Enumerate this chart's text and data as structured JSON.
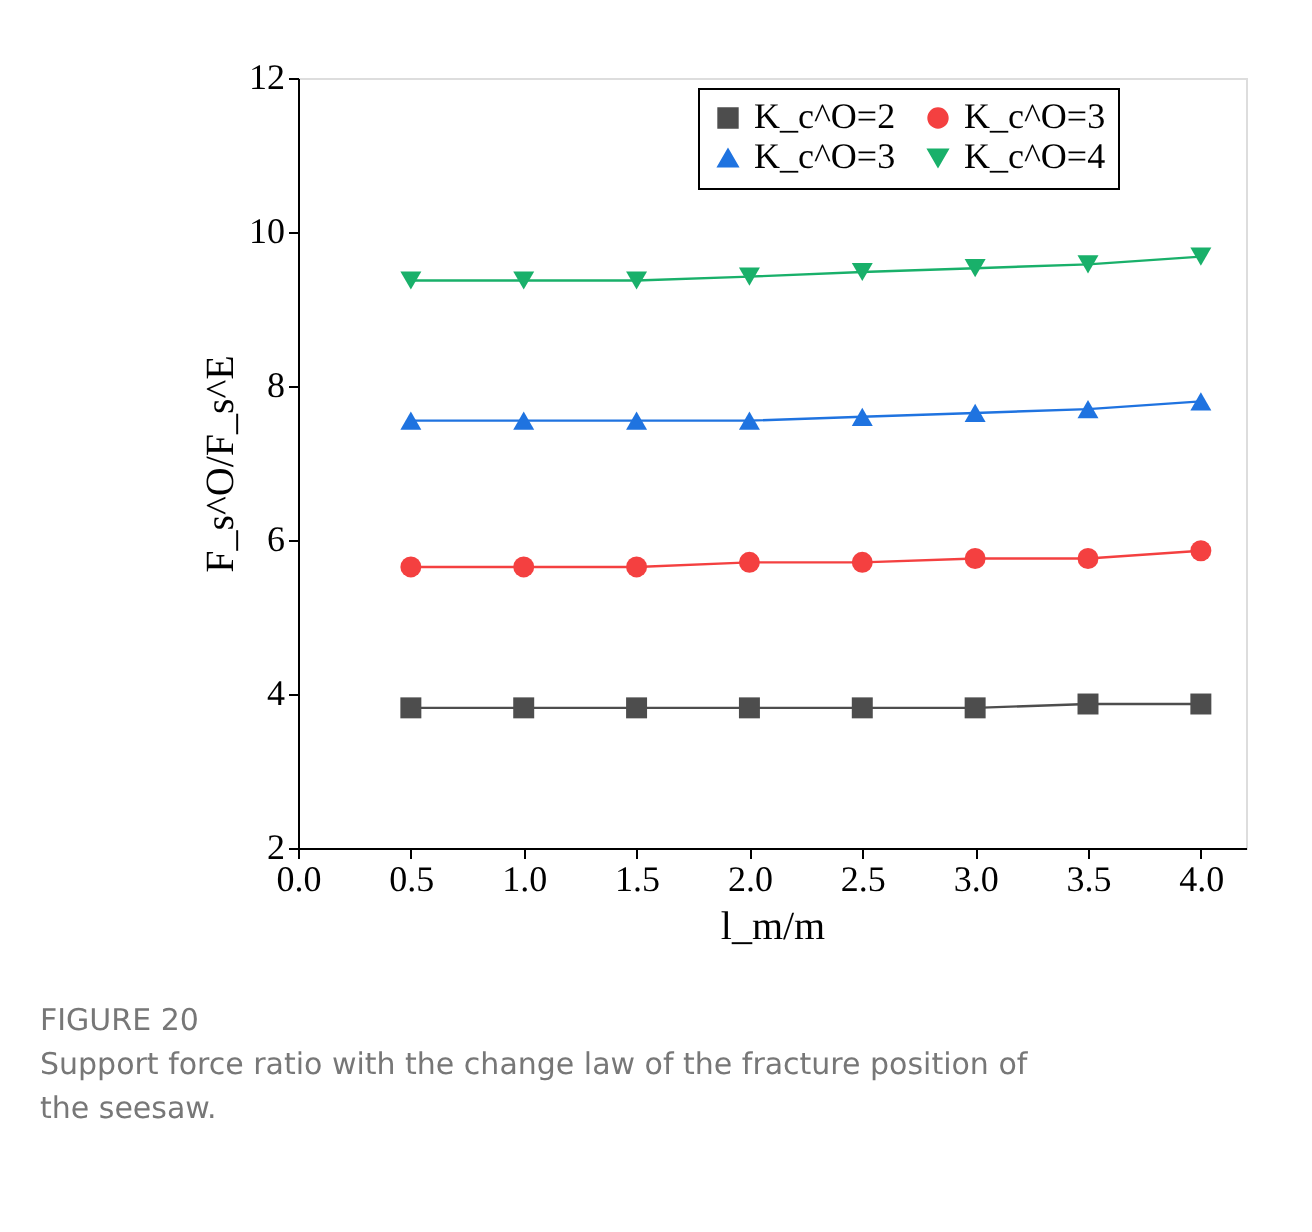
{
  "chart_data": {
    "type": "line",
    "xlabel": "l_m/m",
    "ylabel": "F_s^O/F_s^E",
    "x": [
      0.5,
      1.0,
      1.5,
      2.0,
      2.5,
      3.0,
      3.5,
      4.0
    ],
    "series": [
      {
        "name": "K_c^O=2",
        "color": "#4d4d4d",
        "marker": "square",
        "values": [
          3.82,
          3.82,
          3.82,
          3.82,
          3.82,
          3.82,
          3.87,
          3.87
        ]
      },
      {
        "name": "K_c^O=3",
        "color": "#f44040",
        "marker": "circle",
        "values": [
          5.65,
          5.65,
          5.65,
          5.71,
          5.71,
          5.76,
          5.76,
          5.86
        ]
      },
      {
        "name": "K_c^O=3",
        "color": "#1f73e0",
        "marker": "triangle",
        "values": [
          7.55,
          7.55,
          7.55,
          7.55,
          7.6,
          7.65,
          7.7,
          7.8
        ]
      },
      {
        "name": "K_c^O=4",
        "color": "#19b06a",
        "marker": "triangle-down",
        "values": [
          9.37,
          9.37,
          9.37,
          9.42,
          9.48,
          9.53,
          9.58,
          9.68
        ]
      }
    ],
    "xlim": [
      0,
      4.2
    ],
    "xticks": [
      {
        "value": 0,
        "label": "0.0"
      },
      0.5,
      {
        "value": 1,
        "label": "1.0"
      },
      1.5,
      {
        "value": 2,
        "label": "2.0"
      },
      2.5,
      {
        "value": 3,
        "label": "3.0"
      },
      3.5,
      {
        "value": 4,
        "label": "4.0"
      }
    ],
    "ylim": [
      2,
      12
    ],
    "yticks": [
      2,
      4,
      6,
      8,
      10,
      12
    ],
    "grid": false,
    "legend": "top",
    "annotations": [
      "FIGURE 20",
      "Support force ratio with the change law of the fracture position of the seesaw."
    ]
  }
}
